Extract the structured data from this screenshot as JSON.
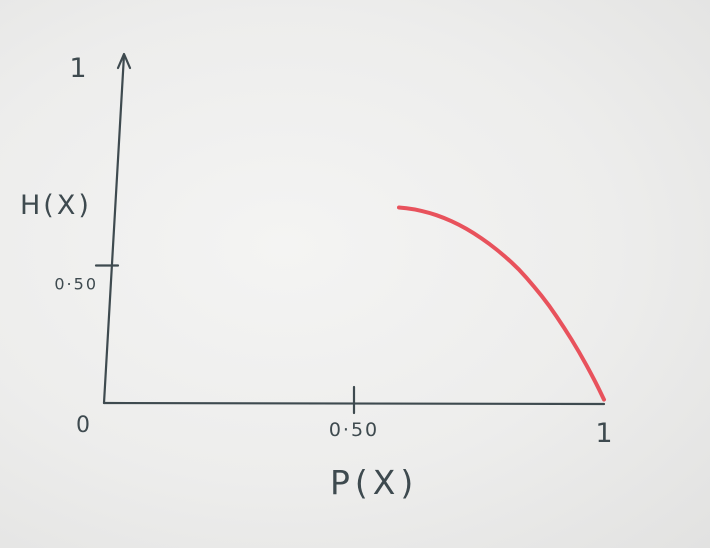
{
  "chart_data": {
    "type": "line",
    "xlabel": "P(X)",
    "ylabel": "H(X)",
    "xlim": [
      0,
      1
    ],
    "ylim": [
      0,
      1
    ],
    "origin_label": "0",
    "x_ticks": [
      {
        "value": 0.5,
        "label": "0·50"
      },
      {
        "value": 1,
        "label": "1"
      }
    ],
    "y_ticks": [
      {
        "value": 0.5,
        "label": "0·50"
      },
      {
        "value": 1,
        "label": "1"
      }
    ],
    "series": [
      {
        "color": "#e8525c",
        "x": [
          0.59,
          0.62,
          0.65,
          0.68,
          0.71,
          0.74,
          0.77,
          0.8,
          0.83,
          0.86,
          0.89,
          0.92,
          0.95,
          0.98,
          1.0
        ],
        "y": [
          0.57,
          0.565,
          0.555,
          0.54,
          0.52,
          0.495,
          0.465,
          0.43,
          0.39,
          0.34,
          0.285,
          0.22,
          0.15,
          0.07,
          0.01
        ]
      }
    ],
    "grid": false,
    "legend": "none"
  }
}
